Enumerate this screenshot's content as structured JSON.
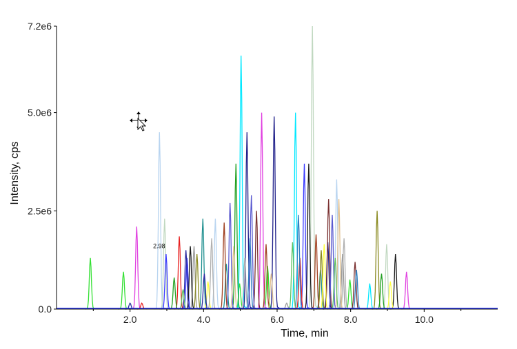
{
  "chart_data": {
    "type": "line",
    "title": "",
    "xlabel": "Time, min",
    "ylabel": "Intensity, cps",
    "xlim": [
      0.0,
      12.0
    ],
    "ylim": [
      0,
      7200000
    ],
    "x_ticks": [
      2.0,
      4.0,
      6.0,
      8.0,
      10.0
    ],
    "x_tick_labels": [
      "2.0",
      "4.0",
      "6.0",
      "8.0",
      "10.0"
    ],
    "y_ticks": [
      0,
      2500000,
      5000000,
      7200000
    ],
    "y_tick_labels": [
      "0.0",
      "2.5e6",
      "5.0e6",
      "7.2e6"
    ],
    "grid": false,
    "legend": "none",
    "annotations": [
      {
        "text": "2.98",
        "x": 2.98,
        "y": 1500000
      }
    ],
    "baseline_color": "#2030ff",
    "series": [
      {
        "color": "#33e033",
        "peaks": [
          [
            0.92,
            1300000
          ],
          [
            1.82,
            950000
          ],
          [
            4.98,
            650000
          ],
          [
            5.74,
            1100000
          ],
          [
            7.98,
            750000
          ]
        ]
      },
      {
        "color": "#e040e0",
        "peaks": [
          [
            2.18,
            2100000
          ],
          [
            5.58,
            5000000
          ],
          [
            9.52,
            950000
          ]
        ]
      },
      {
        "color": "#b8d4f0",
        "peaks": [
          [
            2.8,
            4500000
          ],
          [
            4.32,
            2300000
          ],
          [
            7.62,
            3300000
          ]
        ]
      },
      {
        "color": "#c0d8c0",
        "peaks": [
          [
            2.94,
            2300000
          ],
          [
            6.96,
            7200000
          ],
          [
            8.98,
            1650000
          ]
        ]
      },
      {
        "color": "#3a3aff",
        "peaks": [
          [
            2.98,
            1400000
          ],
          [
            3.55,
            1300000
          ],
          [
            6.74,
            3700000
          ]
        ]
      },
      {
        "color": "#00e8ff",
        "peaks": [
          [
            5.02,
            6450000
          ],
          [
            6.5,
            5000000
          ],
          [
            8.52,
            650000
          ]
        ]
      },
      {
        "color": "#20208a",
        "peaks": [
          [
            5.18,
            4500000
          ],
          [
            5.92,
            4900000
          ],
          [
            7.38,
            1700000
          ]
        ]
      },
      {
        "color": "#e82020",
        "peaks": [
          [
            3.34,
            1850000
          ],
          [
            2.32,
            150000
          ],
          [
            6.62,
            1300000
          ]
        ]
      },
      {
        "color": "#209090",
        "peaks": [
          [
            3.98,
            2300000
          ],
          [
            4.62,
            1150000
          ],
          [
            7.18,
            1000000
          ]
        ]
      },
      {
        "color": "#9a9a9a",
        "peaks": [
          [
            3.74,
            1600000
          ],
          [
            6.26,
            150000
          ],
          [
            7.78,
            1400000
          ]
        ]
      },
      {
        "color": "#7a3030",
        "peaks": [
          [
            5.44,
            2500000
          ],
          [
            7.4,
            2800000
          ],
          [
            8.12,
            1200000
          ]
        ]
      },
      {
        "color": "#1a1a1a",
        "peaks": [
          [
            3.64,
            1600000
          ],
          [
            6.86,
            3700000
          ],
          [
            9.22,
            1400000
          ]
        ]
      },
      {
        "color": "#8a8a20",
        "peaks": [
          [
            3.82,
            1400000
          ],
          [
            8.72,
            2500000
          ],
          [
            7.2,
            1500000
          ]
        ]
      },
      {
        "color": "#20a020",
        "peaks": [
          [
            4.88,
            3700000
          ],
          [
            3.2,
            800000
          ],
          [
            8.84,
            900000
          ]
        ]
      },
      {
        "color": "#ffff40",
        "peaks": [
          [
            4.12,
            700000
          ],
          [
            7.28,
            1650000
          ],
          [
            9.08,
            700000
          ]
        ]
      },
      {
        "color": "#5a5ad0",
        "peaks": [
          [
            4.72,
            2700000
          ],
          [
            5.3,
            2900000
          ],
          [
            7.5,
            2400000
          ]
        ]
      },
      {
        "color": "#b0b0b0",
        "peaks": [
          [
            4.22,
            1800000
          ],
          [
            5.12,
            1300000
          ],
          [
            7.82,
            1800000
          ]
        ]
      },
      {
        "color": "#a04020",
        "peaks": [
          [
            4.56,
            2200000
          ],
          [
            5.7,
            1650000
          ],
          [
            7.06,
            1900000
          ]
        ]
      },
      {
        "color": "#2a2aa0",
        "peaks": [
          [
            3.52,
            1500000
          ],
          [
            4.02,
            900000
          ],
          [
            2.0,
            150000
          ]
        ]
      },
      {
        "color": "#e0c090",
        "peaks": [
          [
            4.82,
            1600000
          ],
          [
            7.68,
            2800000
          ],
          [
            5.84,
            900000
          ]
        ]
      },
      {
        "color": "#3080c0",
        "peaks": [
          [
            5.26,
            1800000
          ],
          [
            6.58,
            2400000
          ],
          [
            8.16,
            1000000
          ]
        ]
      },
      {
        "color": "#60c060",
        "peaks": [
          [
            3.44,
            500000
          ],
          [
            6.42,
            1700000
          ],
          [
            7.58,
            1300000
          ]
        ]
      }
    ]
  }
}
